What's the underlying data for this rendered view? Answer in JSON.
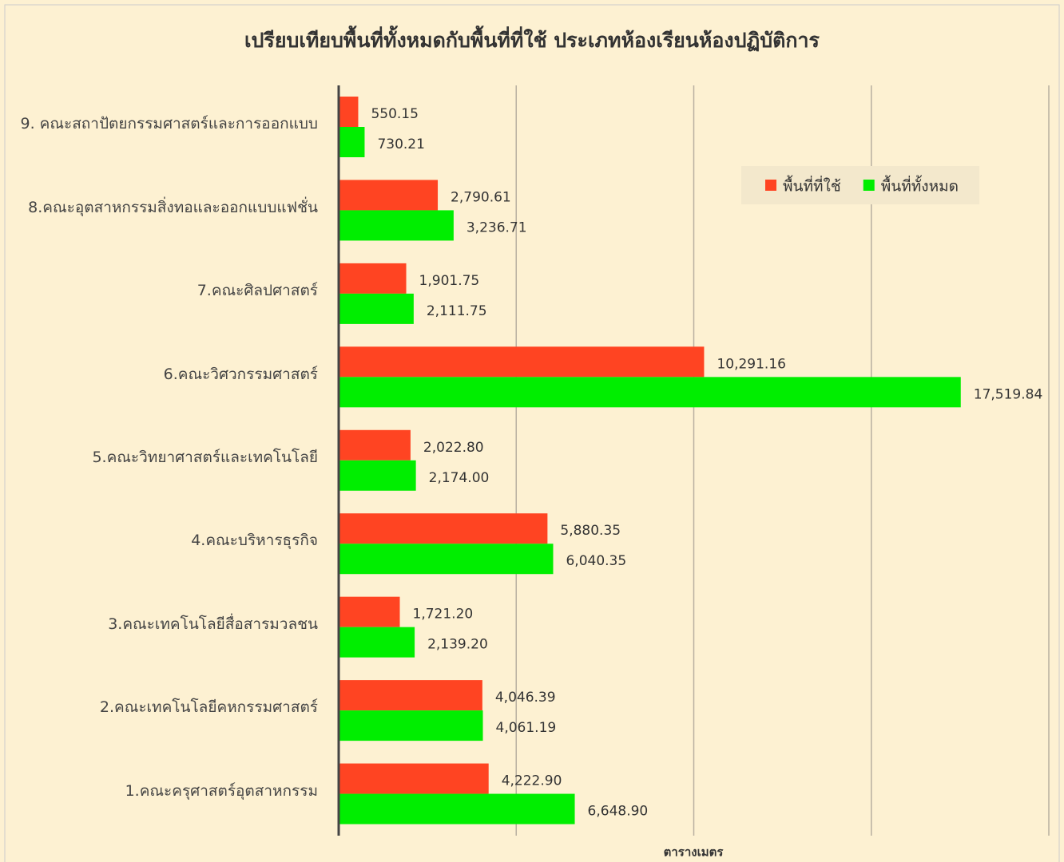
{
  "chart_data": {
    "type": "barh",
    "title": "เปรียบเทียบพื้นที่ทั้งหมดกับพื้นที่ที่ใช้ ประเภทห้องเรียนห้องปฏิบัติการ",
    "x_label": "ตารางเมตร",
    "categories": [
      "9. คณะสถาปัตยกรรมศาสตร์และการออกแบบ",
      "8.คณะอุตสาหกรรมสิ่งทอและออกแบบแฟชั่น",
      "7.คณะศิลปศาสตร์",
      "6.คณะวิศวกรรมศาสตร์",
      "5.คณะวิทยาศาสตร์และเทคโนโลยี",
      "4.คณะบริหารธุรกิจ",
      "3.คณะเทคโนโลยีสื่อสารมวลชน",
      "2.คณะเทคโนโลยีคหกรรมศาสตร์",
      "1.คณะครุศาสตร์อุตสาหกรรม"
    ],
    "series": [
      {
        "name": "พื้นที่ที่ใช้",
        "color": "#ff4422",
        "values": [
          550.15,
          2790.61,
          1901.75,
          10291.16,
          2022.8,
          5880.35,
          1721.2,
          4046.39,
          4222.9
        ],
        "value_labels": [
          "550.15",
          "2,790.61",
          "1,901.75",
          "10,291.16",
          "2,022.80",
          "5,880.35",
          "1,721.20",
          "4,046.39",
          "4,222.90"
        ]
      },
      {
        "name": "พื้นที่ทั้งหมด",
        "color": "#00ee00",
        "values": [
          730.21,
          3236.71,
          2111.75,
          17519.84,
          2174.0,
          6040.35,
          2139.2,
          4061.19,
          6648.9
        ],
        "value_labels": [
          "730.21",
          "3,236.71",
          "2,111.75",
          "17,519.84",
          "2,174.00",
          "6,040.35",
          "2,139.20",
          "4,061.19",
          "6,648.90"
        ]
      }
    ],
    "xlim": [
      0,
      20000
    ],
    "xticks": [
      5000,
      10000,
      15000,
      20000
    ],
    "grid": true,
    "legend": "upper right"
  }
}
